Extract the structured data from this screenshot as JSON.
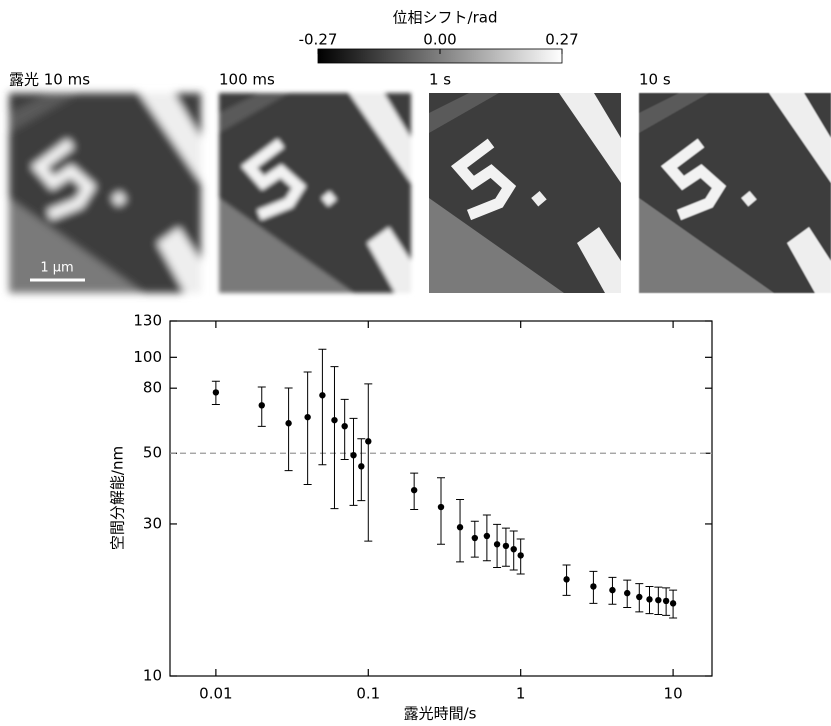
{
  "colorbar": {
    "title": "位相シフト/rad",
    "lim": [
      -0.27,
      0.27
    ],
    "ticks": [
      -0.27,
      {
        "value": 0,
        "label": "0.00"
      },
      0.27
    ]
  },
  "panels": [
    {
      "label": "露光 10 ms",
      "scale_bar": "1 μm"
    },
    {
      "label": "100 ms"
    },
    {
      "label": "1 s"
    },
    {
      "label": "10 s"
    }
  ],
  "chart_data": {
    "type": "scatter",
    "xlabel": "露光時間/s",
    "ylabel": "空間分解能/nm",
    "x": [
      0.01,
      0.02,
      0.03,
      0.04,
      0.05,
      0.06,
      0.07,
      0.08,
      0.09,
      0.1,
      0.2,
      0.3,
      0.4,
      0.5,
      0.6,
      0.7,
      0.8,
      0.9,
      1,
      2,
      3,
      4,
      5,
      6,
      7,
      8,
      9,
      10
    ],
    "values": [
      77.6,
      70.7,
      62.1,
      64.9,
      76.0,
      63.5,
      60.8,
      49.3,
      45.5,
      54.5,
      38.3,
      33.9,
      29.3,
      27.1,
      27.5,
      25.9,
      25.6,
      25.0,
      23.9,
      20.1,
      19.1,
      18.6,
      18.2,
      17.7,
      17.4,
      17.3,
      17.2,
      16.9
    ],
    "errors": [
      6.5,
      10,
      18,
      25,
      30,
      30,
      13,
      15,
      10,
      28,
      5,
      8,
      6.5,
      3.5,
      4.5,
      4,
      3.5,
      3.5,
      3,
      2.2,
      2.2,
      1.8,
      1.8,
      1.8,
      1.7,
      1.7,
      1.7,
      1.7
    ],
    "color": "#000000",
    "xscale": "log",
    "yscale": "log",
    "xlim": [
      0.005,
      18
    ],
    "ylim": [
      10,
      130
    ],
    "xticks": [
      0.01,
      0.1,
      1,
      10
    ],
    "yticks": [
      10,
      30,
      50,
      80,
      100,
      130
    ],
    "hline": 50,
    "hline_color": "#999999"
  }
}
